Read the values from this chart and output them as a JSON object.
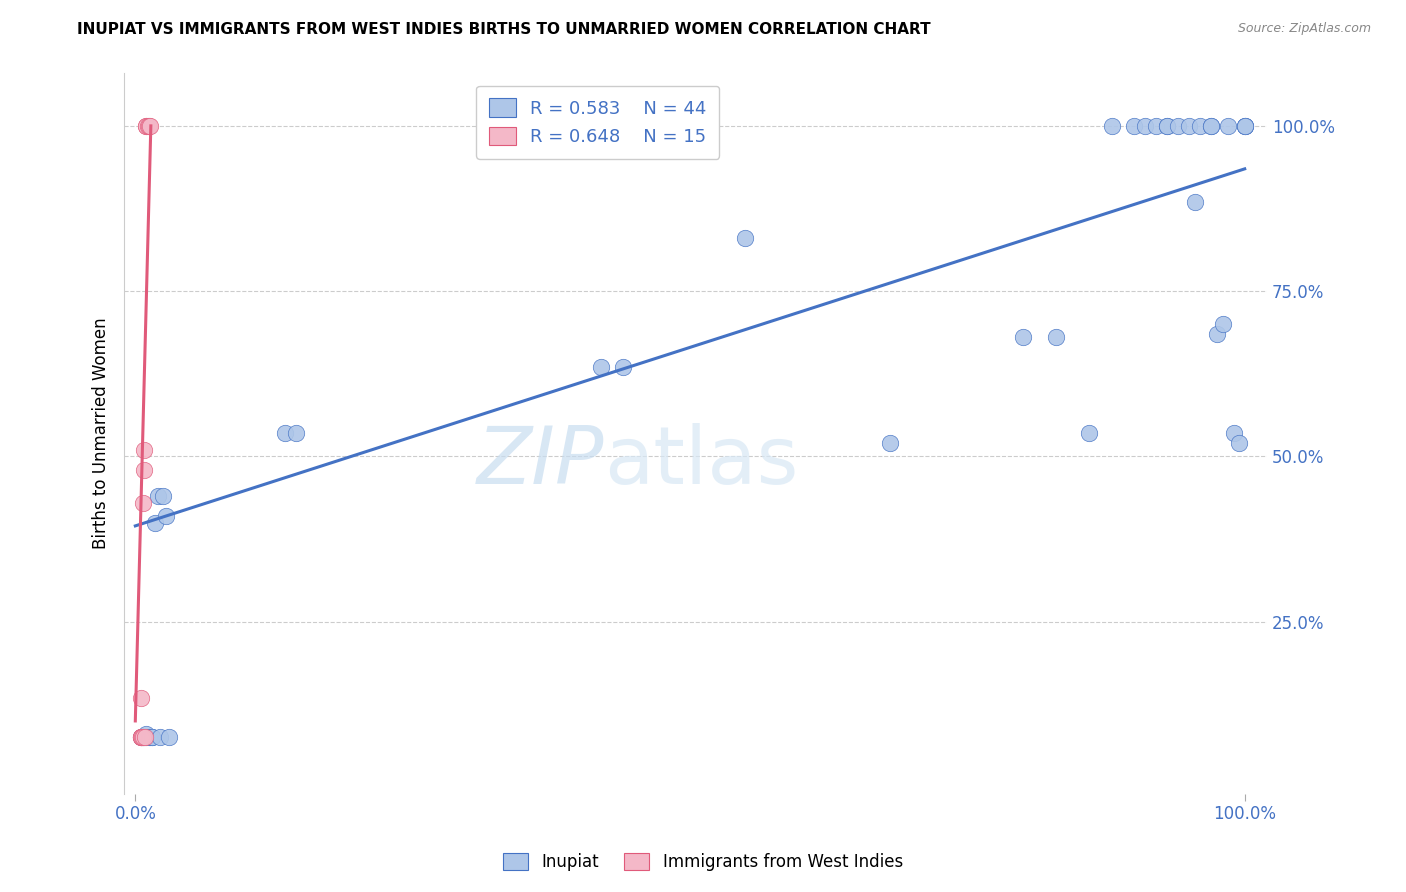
{
  "title": "INUPIAT VS IMMIGRANTS FROM WEST INDIES BIRTHS TO UNMARRIED WOMEN CORRELATION CHART",
  "source": "Source: ZipAtlas.com",
  "ylabel": "Births to Unmarried Women",
  "y_ticks_right": [
    "25.0%",
    "50.0%",
    "75.0%",
    "100.0%"
  ],
  "y_tick_values": [
    0.25,
    0.5,
    0.75,
    1.0
  ],
  "xlim": [
    -0.01,
    1.02
  ],
  "ylim": [
    -0.01,
    1.08
  ],
  "legend_r1": "R = 0.583",
  "legend_n1": "N = 44",
  "legend_r2": "R = 0.648",
  "legend_n2": "N = 15",
  "blue_color": "#aec6e8",
  "pink_color": "#f4b8c8",
  "line_blue": "#4472c4",
  "line_pink": "#e05a7a",
  "watermark_zip": "ZIP",
  "watermark_atlas": "atlas",
  "legend_label1": "Inupiat",
  "legend_label2": "Immigrants from West Indies",
  "blue_points_x": [
    0.005,
    0.007,
    0.008,
    0.01,
    0.01,
    0.012,
    0.013,
    0.015,
    0.015,
    0.018,
    0.02,
    0.022,
    0.025,
    0.028,
    0.03,
    0.135,
    0.145,
    0.42,
    0.44,
    0.55,
    0.68,
    0.8,
    0.83,
    0.86,
    0.88,
    0.9,
    0.91,
    0.92,
    0.93,
    0.93,
    0.94,
    0.95,
    0.955,
    0.96,
    0.97,
    0.97,
    0.975,
    0.98,
    0.985,
    0.99,
    0.995,
    1.0,
    1.0,
    1.0
  ],
  "blue_points_y": [
    0.075,
    0.075,
    0.075,
    0.075,
    0.08,
    0.075,
    0.075,
    0.075,
    0.075,
    0.4,
    0.44,
    0.075,
    0.44,
    0.41,
    0.075,
    0.535,
    0.535,
    0.635,
    0.635,
    0.83,
    0.52,
    0.68,
    0.68,
    0.535,
    1.0,
    1.0,
    1.0,
    1.0,
    1.0,
    1.0,
    1.0,
    1.0,
    0.885,
    1.0,
    1.0,
    1.0,
    0.685,
    0.7,
    1.0,
    0.535,
    0.52,
    1.0,
    1.0,
    1.0
  ],
  "pink_points_x": [
    0.005,
    0.005,
    0.005,
    0.006,
    0.007,
    0.007,
    0.008,
    0.008,
    0.009,
    0.01,
    0.01,
    0.011,
    0.012,
    0.013,
    0.005
  ],
  "pink_points_y": [
    0.075,
    0.075,
    0.075,
    0.075,
    0.075,
    0.43,
    0.48,
    0.51,
    0.075,
    1.0,
    1.0,
    1.0,
    1.0,
    1.0,
    0.135
  ],
  "blue_line_x": [
    0.0,
    1.0
  ],
  "blue_line_y": [
    0.395,
    0.935
  ],
  "pink_line_x": [
    0.0,
    0.014
  ],
  "pink_line_y": [
    0.1,
    1.0
  ]
}
